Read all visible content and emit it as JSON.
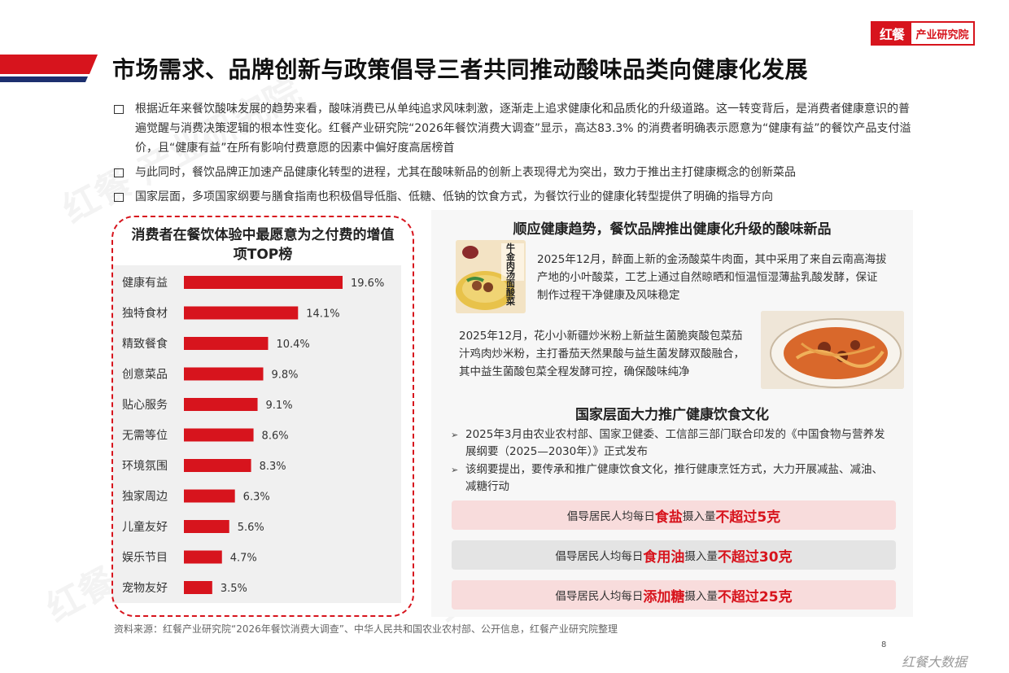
{
  "brand": {
    "logo_short": "红餐",
    "logo_name": "产业研究院",
    "accent_color": "#d7141d",
    "navy_color": "#1c2f6e",
    "footer_brand": "红餐大数据"
  },
  "page": {
    "title": "市场需求、品牌创新与政策倡导三者共同推动酸味品类向健康化发展",
    "page_number": "8",
    "source": "资料来源：红餐产业研究院“2026年餐饮消费大调查”、中华人民共和国农业农村部、公开信息，红餐产业研究院整理"
  },
  "bullets": [
    "根据近年来餐饮酸味发展的趋势来看，酸味消费已从单纯追求风味刺激，逐渐走上追求健康化和品质化的升级道路。这一转变背后，是消费者健康意识的普遍觉醒与消费决策逻辑的根本性变化。红餐产业研究院“2026年餐饮消费大调查”显示，高达83.3% 的消费者明确表示愿意为“健康有益”的餐饮产品支付溢价，且“健康有益”在所有影响付费意愿的因素中偏好度高居榜首",
    "与此同时，餐饮品牌正加速产品健康化转型的进程，尤其在酸味新品的创新上表现得尤为突出，致力于推出主打健康概念的创新菜品",
    "国家层面，多项国家纲要与膳食指南也积极倡导低脂、低糖、低钠的饮食方式，为餐饮行业的健康化转型提供了明确的指导方向"
  ],
  "chart_data": {
    "type": "bar",
    "orientation": "horizontal",
    "title": "消费者在餐饮体验中最愿意为之付费的增值项TOP榜",
    "categories": [
      "健康有益",
      "独特食材",
      "精致餐食",
      "创意菜品",
      "贴心服务",
      "无需等位",
      "环境氛围",
      "独家周边",
      "儿童友好",
      "娱乐节目",
      "宠物友好"
    ],
    "values": [
      19.6,
      14.1,
      10.4,
      9.8,
      9.1,
      8.6,
      8.3,
      6.3,
      5.6,
      4.7,
      3.5
    ],
    "labels": [
      "19.6%",
      "14.1%",
      "10.4%",
      "9.8%",
      "9.1%",
      "8.6%",
      "8.3%",
      "6.3%",
      "5.6%",
      "4.7%",
      "3.5%"
    ],
    "unit": "%",
    "bar_color": "#d7141d",
    "grid": false,
    "legend": "none"
  },
  "right": {
    "heading1": "顺应健康趋势，餐饮品牌推出健康化升级的酸味新品",
    "item1_img_text": "牛金肉汤面酸菜",
    "item1": "2025年12月，醉面上新的金汤酸菜牛肉面，其中采用了来自云南高海拔产地的小叶酸菜，工艺上通过自然晾晒和恒温恒湿薄盐乳酸发酵，保证制作过程干净健康及风味稳定",
    "item2": "2025年12月，花小小新疆炒米粉上新益生菌脆爽酸包菜茄汁鸡肉炒米粉，主打番茄天然果酸与益生菌发酵双酸融合，其中益生菌酸包菜全程发酵可控，确保酸味纯净",
    "heading2": "国家层面大力推广健康饮食文化",
    "arrow_items": [
      "2025年3月由农业农村部、国家卫健委、工信部三部门联合印发的《中国食物与营养发展纲要（2025—2030年）》正式发布",
      "该纲要提出，要传承和推广健康饮食文化，推行健康烹饪方式，大力开展减盐、减油、减糖行动"
    ],
    "pills": [
      {
        "pre": "倡导居民人均每日",
        "item": "食盐",
        "mid": "摄入量",
        "limit": "不超过5克"
      },
      {
        "pre": "倡导居民人均每日",
        "item": "食用油",
        "mid": "摄入量",
        "limit": "不超过30克"
      },
      {
        "pre": "倡导居民人均每日",
        "item": "添加糖",
        "mid": "摄入量",
        "limit": "不超过25克"
      }
    ]
  }
}
